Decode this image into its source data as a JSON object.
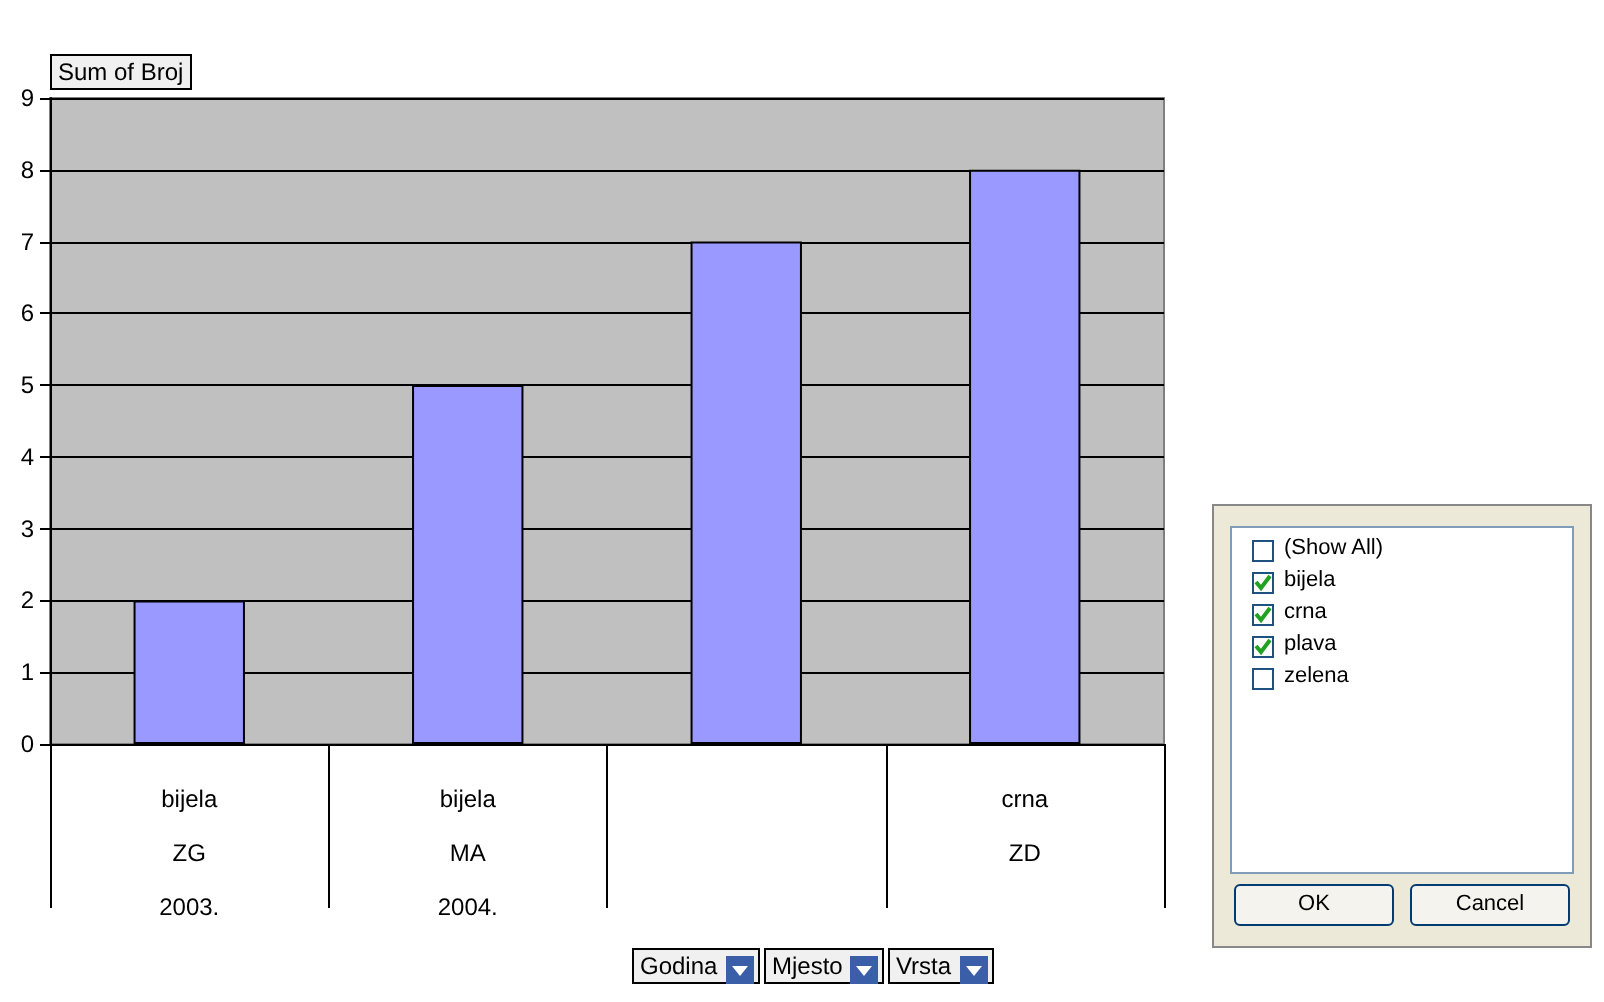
{
  "chart_data": {
    "type": "bar",
    "categories": [
      "bijela\nZG\n2003.",
      "bijela\nMA\n2004.",
      null,
      "crna\nZD"
    ],
    "values": [
      2,
      5,
      7,
      8
    ],
    "color": "#9999ff",
    "ylim": [
      0,
      9
    ],
    "yticks": [
      0,
      1,
      2,
      3,
      4,
      5,
      6,
      7,
      8,
      9
    ],
    "grid": "y",
    "annotations": [
      "Sum of Broj",
      "Godina",
      "Mjesto",
      "Vrsta",
      "(Show All)",
      "bijela",
      "crna",
      "plava",
      "zelena",
      "OK",
      "Cancel"
    ]
  }
}
